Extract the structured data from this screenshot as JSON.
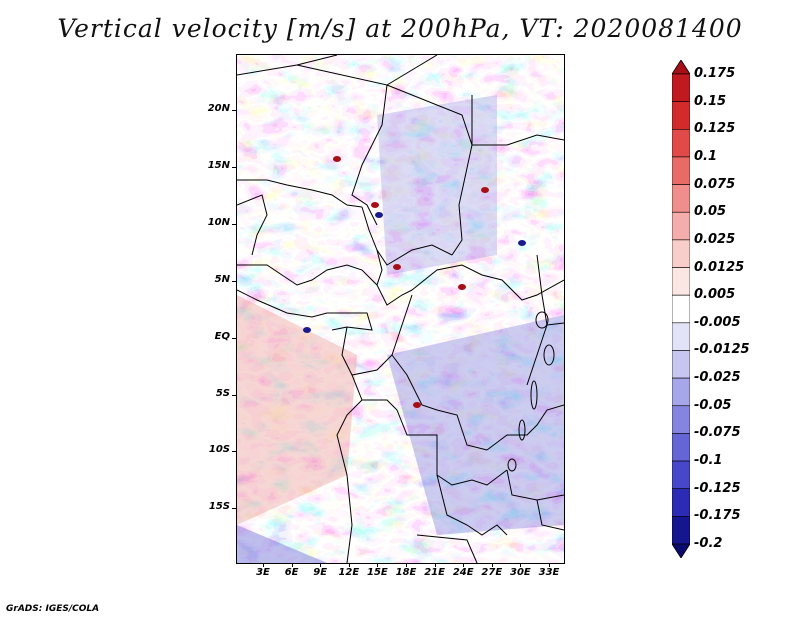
{
  "title": "Vertical velocity [m/s] at 200hPa, VT: 2020081400",
  "footer": "GrADS: IGES/COLA",
  "map": {
    "lat_ticks": [
      "20N",
      "15N",
      "10N",
      "5N",
      "EQ",
      "5S",
      "10S",
      "15S"
    ],
    "lon_ticks": [
      "3E",
      "6E",
      "9E",
      "12E",
      "15E",
      "18E",
      "21E",
      "24E",
      "27E",
      "30E",
      "33E"
    ],
    "field_colors": {
      "positive": "#e8928f",
      "negative": "#6b6bd9",
      "neutral": "#ffffff"
    }
  },
  "colorbar": {
    "levels": [
      "0.175",
      "0.15",
      "0.125",
      "0.1",
      "0.075",
      "0.05",
      "0.025",
      "0.0125",
      "0.005",
      "-0.005",
      "-0.0125",
      "-0.025",
      "-0.05",
      "-0.075",
      "-0.1",
      "-0.125",
      "-0.175",
      "-0.2"
    ],
    "colors": [
      "#a50f15",
      "#c0191f",
      "#d32b2b",
      "#e04a48",
      "#e86b68",
      "#ef8e8a",
      "#f4adaa",
      "#f8cdca",
      "#fbe6e4",
      "#ffffff",
      "#e2e2f8",
      "#c6c6f1",
      "#a6a6ea",
      "#8585e0",
      "#6565d6",
      "#4747c9",
      "#2b2bb5",
      "#15158f",
      "#0a0a6e"
    ]
  }
}
